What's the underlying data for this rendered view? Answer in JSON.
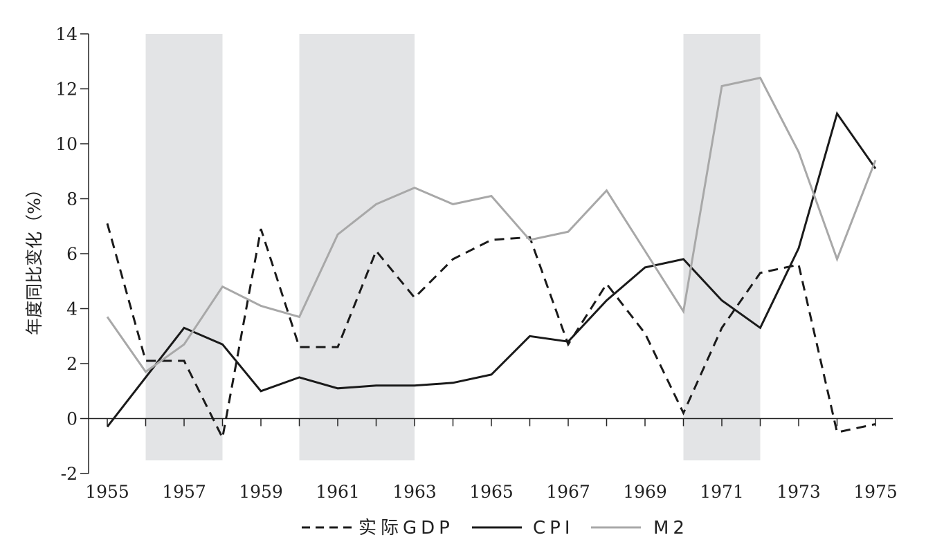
{
  "chart_data": {
    "type": "line",
    "ylabel": "年度同比变化（%）",
    "xlim": [
      1955,
      1975
    ],
    "ylim": [
      -2,
      14
    ],
    "y_ticks": [
      "-2",
      "0",
      "2",
      "4",
      "6",
      "8",
      "10",
      "12",
      "14"
    ],
    "x_ticks": [
      "1955",
      "1957",
      "1959",
      "1961",
      "1963",
      "1965",
      "1967",
      "1969",
      "1971",
      "1973",
      "1975"
    ],
    "shaded_periods": [
      [
        1956,
        1958
      ],
      [
        1960,
        1963
      ],
      [
        1970,
        1972
      ]
    ],
    "grid": false,
    "legend_position": "bottom",
    "x": [
      1955,
      1956,
      1957,
      1958,
      1959,
      1960,
      1961,
      1962,
      1963,
      1964,
      1965,
      1966,
      1967,
      1968,
      1969,
      1970,
      1971,
      1972,
      1973,
      1974,
      1975
    ],
    "series": [
      {
        "name": "实际GDP",
        "color": "#1a1a1a",
        "style": "dashed",
        "values": [
          7.1,
          2.1,
          2.1,
          -0.7,
          6.9,
          2.6,
          2.6,
          6.1,
          4.4,
          5.8,
          6.5,
          6.6,
          2.7,
          4.9,
          3.1,
          0.2,
          3.3,
          5.3,
          5.6,
          -0.5,
          -0.2
        ]
      },
      {
        "name": "CPI",
        "color": "#1a1a1a",
        "style": "solid",
        "values": [
          -0.3,
          1.5,
          3.3,
          2.7,
          1.0,
          1.5,
          1.1,
          1.2,
          1.2,
          1.3,
          1.6,
          3.0,
          2.8,
          4.3,
          5.5,
          5.8,
          4.3,
          3.3,
          6.2,
          11.1,
          9.1
        ]
      },
      {
        "name": "M2",
        "color": "#a8a8a8",
        "style": "solid",
        "values": [
          3.7,
          1.7,
          2.7,
          4.8,
          4.1,
          3.7,
          6.7,
          7.8,
          8.4,
          7.8,
          8.1,
          6.5,
          6.8,
          8.3,
          6.1,
          3.9,
          12.1,
          12.4,
          9.7,
          5.8,
          9.4
        ]
      }
    ]
  }
}
